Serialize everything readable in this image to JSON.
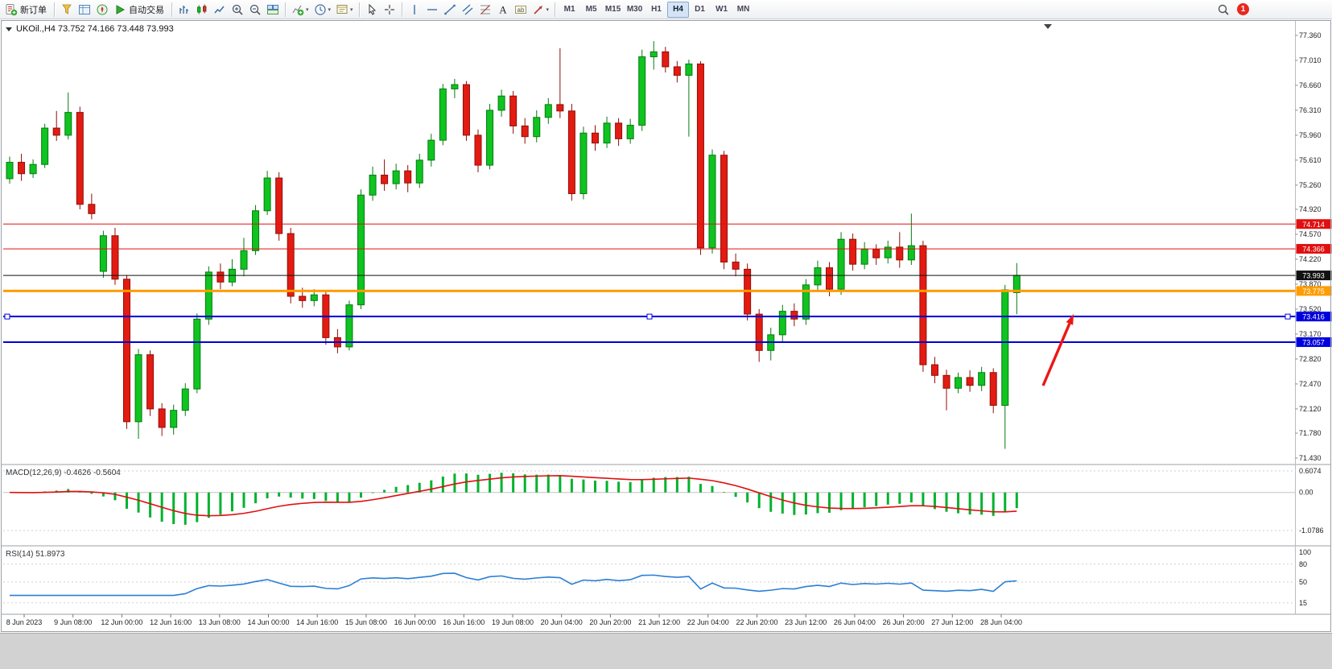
{
  "toolbar": {
    "items": [
      {
        "type": "button",
        "name": "new-order",
        "icon": "new-order",
        "label": "新订单"
      },
      {
        "type": "sep"
      },
      {
        "type": "button",
        "name": "market-watch",
        "icon": "market-watch"
      },
      {
        "type": "button",
        "name": "data-window",
        "icon": "data-window"
      },
      {
        "type": "button",
        "name": "navigator",
        "icon": "navigator"
      },
      {
        "type": "button",
        "name": "auto-trading",
        "icon": "auto-play",
        "label": "自动交易"
      },
      {
        "type": "sep"
      },
      {
        "type": "button",
        "name": "bar-chart-mode",
        "icon": "bar-chart"
      },
      {
        "type": "button",
        "name": "candlestick-mode",
        "icon": "candle-chart"
      },
      {
        "type": "button",
        "name": "line-chart-mode",
        "icon": "line-chart"
      },
      {
        "type": "button",
        "name": "zoom-in",
        "icon": "zoom-in"
      },
      {
        "type": "button",
        "name": "zoom-out",
        "icon": "zoom-out"
      },
      {
        "type": "button",
        "name": "tile-windows",
        "icon": "tile-windows"
      },
      {
        "type": "sep"
      },
      {
        "type": "button",
        "name": "indicators",
        "icon": "indicators",
        "caret": true
      },
      {
        "type": "button",
        "name": "periods",
        "icon": "clock",
        "caret": true
      },
      {
        "type": "button",
        "name": "templates",
        "icon": "templates",
        "caret": true
      },
      {
        "type": "sep"
      },
      {
        "type": "button",
        "name": "cursor",
        "icon": "cursor"
      },
      {
        "type": "button",
        "name": "crosshair",
        "icon": "crosshair"
      },
      {
        "type": "sep"
      },
      {
        "type": "button",
        "name": "vertical-line-tool",
        "icon": "vline"
      },
      {
        "type": "button",
        "name": "horizontal-line-tool",
        "icon": "hline"
      },
      {
        "type": "button",
        "name": "trendline-tool",
        "icon": "trendline"
      },
      {
        "type": "button",
        "name": "channel-tool",
        "icon": "channel"
      },
      {
        "type": "button",
        "name": "fibonacci-tool",
        "icon": "fibonacci"
      },
      {
        "type": "button",
        "name": "text-tool",
        "icon": "text"
      },
      {
        "type": "button",
        "name": "text-label-tool",
        "icon": "text-label"
      },
      {
        "type": "button",
        "name": "arrows-tool",
        "icon": "arrows",
        "caret": true
      },
      {
        "type": "sep"
      }
    ],
    "timeframes": [
      "M1",
      "M5",
      "M15",
      "M30",
      "H1",
      "H4",
      "D1",
      "W1",
      "MN"
    ],
    "active_timeframe": "H4",
    "notification_count": "1"
  },
  "chart_data": {
    "type": "candlestick",
    "symbol": "UKOil",
    "period": "H4",
    "title": "UKOil.,H4  73.752 74.166 73.448 73.993",
    "bull_color": "#0fc420",
    "bear_color": "#e31b12",
    "price_axis_labels": [
      "77.360",
      "77.010",
      "76.660",
      "76.310",
      "75.960",
      "75.610",
      "75.260",
      "74.920",
      "74.570",
      "74.220",
      "73.870",
      "73.520",
      "73.170",
      "72.820",
      "72.470",
      "72.120",
      "71.780",
      "71.430"
    ],
    "time_axis_labels": [
      "8 Jun 2023",
      "9 Jun 08:00",
      "12 Jun 00:00",
      "12 Jun 16:00",
      "13 Jun 08:00",
      "14 Jun 00:00",
      "14 Jun 16:00",
      "15 Jun 08:00",
      "16 Jun 00:00",
      "16 Jun 16:00",
      "19 Jun 08:00",
      "20 Jun 04:00",
      "20 Jun 20:00",
      "21 Jun 12:00",
      "22 Jun 04:00",
      "22 Jun 20:00",
      "23 Jun 12:00",
      "26 Jun 04:00",
      "26 Jun 20:00",
      "27 Jun 12:00",
      "28 Jun 04:00"
    ],
    "hlines": [
      {
        "name": "resistance-1",
        "price": 74.714,
        "label": "74.714",
        "color": "#e01010",
        "width": 1
      },
      {
        "name": "resistance-2",
        "price": 74.366,
        "label": "74.366",
        "color": "#e01010",
        "width": 1
      },
      {
        "name": "current-price",
        "price": 73.993,
        "label": "73.993",
        "color": "#111111",
        "width": 1
      },
      {
        "name": "pivot-orange",
        "price": 73.775,
        "label": "73.775",
        "color": "#ff9c00",
        "width": 3
      },
      {
        "name": "support-1",
        "price": 73.416,
        "label": "73.416",
        "color": "#0000dd",
        "width": 2,
        "selected": true
      },
      {
        "name": "support-2",
        "price": 73.057,
        "label": "73.057",
        "color": "#0000dd",
        "width": 2
      }
    ],
    "ohlc": [
      [
        75.35,
        75.66,
        75.28,
        75.58
      ],
      [
        75.58,
        75.7,
        75.32,
        75.42
      ],
      [
        75.42,
        75.62,
        75.36,
        75.55
      ],
      [
        75.55,
        76.12,
        75.5,
        76.06
      ],
      [
        76.06,
        76.3,
        75.88,
        75.96
      ],
      [
        75.96,
        76.56,
        75.9,
        76.28
      ],
      [
        76.28,
        76.36,
        74.92,
        74.99
      ],
      [
        74.99,
        75.14,
        74.78,
        74.86
      ],
      [
        74.05,
        74.62,
        73.96,
        74.55
      ],
      [
        74.55,
        74.66,
        73.86,
        73.94
      ],
      [
        73.94,
        74.0,
        71.84,
        71.94
      ],
      [
        71.94,
        72.96,
        71.7,
        72.88
      ],
      [
        72.88,
        72.94,
        72.02,
        72.12
      ],
      [
        72.12,
        72.2,
        71.74,
        71.86
      ],
      [
        71.86,
        72.18,
        71.76,
        72.1
      ],
      [
        72.1,
        72.48,
        72.02,
        72.4
      ],
      [
        72.4,
        73.46,
        72.34,
        73.38
      ],
      [
        73.38,
        74.12,
        73.3,
        74.04
      ],
      [
        74.04,
        74.16,
        73.8,
        73.9
      ],
      [
        73.9,
        74.22,
        73.84,
        74.08
      ],
      [
        74.08,
        74.52,
        73.98,
        74.34
      ],
      [
        74.34,
        74.98,
        74.28,
        74.9
      ],
      [
        74.9,
        75.46,
        74.84,
        75.36
      ],
      [
        75.36,
        75.44,
        74.48,
        74.58
      ],
      [
        74.58,
        74.66,
        73.6,
        73.7
      ],
      [
        73.7,
        73.82,
        73.54,
        73.64
      ],
      [
        73.64,
        73.8,
        73.56,
        73.72
      ],
      [
        73.72,
        73.78,
        73.02,
        73.12
      ],
      [
        73.12,
        73.24,
        72.9,
        72.99
      ],
      [
        72.99,
        73.64,
        72.94,
        73.58
      ],
      [
        73.58,
        75.2,
        73.52,
        75.12
      ],
      [
        75.12,
        75.52,
        75.04,
        75.4
      ],
      [
        75.4,
        75.62,
        75.18,
        75.28
      ],
      [
        75.28,
        75.56,
        75.2,
        75.46
      ],
      [
        75.46,
        75.54,
        75.16,
        75.29
      ],
      [
        75.29,
        75.7,
        75.22,
        75.61
      ],
      [
        75.61,
        75.98,
        75.52,
        75.89
      ],
      [
        75.89,
        76.68,
        75.82,
        76.61
      ],
      [
        76.61,
        76.75,
        76.48,
        76.67
      ],
      [
        76.67,
        76.72,
        75.88,
        75.96
      ],
      [
        75.96,
        76.04,
        75.44,
        75.54
      ],
      [
        75.54,
        76.4,
        75.48,
        76.31
      ],
      [
        76.31,
        76.6,
        76.22,
        76.51
      ],
      [
        76.51,
        76.58,
        75.98,
        76.09
      ],
      [
        76.09,
        76.2,
        75.84,
        75.94
      ],
      [
        75.94,
        76.31,
        75.86,
        76.21
      ],
      [
        76.21,
        76.48,
        76.12,
        76.39
      ],
      [
        76.39,
        77.18,
        76.2,
        76.3
      ],
      [
        76.3,
        76.4,
        75.04,
        75.14
      ],
      [
        75.14,
        76.08,
        75.06,
        75.99
      ],
      [
        75.99,
        76.1,
        75.74,
        75.85
      ],
      [
        75.85,
        76.22,
        75.78,
        76.13
      ],
      [
        76.13,
        76.2,
        75.81,
        75.91
      ],
      [
        75.91,
        76.19,
        75.84,
        76.1
      ],
      [
        76.1,
        77.16,
        76.02,
        77.06
      ],
      [
        77.06,
        77.28,
        76.88,
        77.13
      ],
      [
        77.13,
        77.2,
        76.84,
        76.92
      ],
      [
        76.92,
        77.0,
        76.7,
        76.8
      ],
      [
        76.8,
        77.02,
        75.94,
        76.96
      ],
      [
        76.96,
        77.0,
        74.28,
        74.38
      ],
      [
        74.38,
        75.76,
        74.3,
        75.68
      ],
      [
        75.68,
        75.74,
        74.08,
        74.18
      ],
      [
        74.18,
        74.3,
        73.98,
        74.08
      ],
      [
        74.08,
        74.16,
        73.36,
        73.45
      ],
      [
        73.45,
        73.52,
        72.78,
        72.94
      ],
      [
        72.94,
        73.26,
        72.8,
        73.16
      ],
      [
        73.16,
        73.58,
        73.06,
        73.49
      ],
      [
        73.49,
        73.6,
        73.28,
        73.38
      ],
      [
        73.38,
        73.94,
        73.3,
        73.86
      ],
      [
        73.86,
        74.2,
        73.76,
        74.1
      ],
      [
        74.1,
        74.18,
        73.7,
        73.8
      ],
      [
        73.8,
        74.6,
        73.72,
        74.5
      ],
      [
        74.5,
        74.58,
        74.06,
        74.15
      ],
      [
        74.15,
        74.46,
        74.08,
        74.36
      ],
      [
        74.36,
        74.43,
        74.14,
        74.24
      ],
      [
        74.24,
        74.48,
        74.16,
        74.39
      ],
      [
        74.39,
        74.6,
        74.1,
        74.21
      ],
      [
        74.21,
        74.86,
        74.14,
        74.41
      ],
      [
        74.41,
        74.48,
        72.64,
        72.74
      ],
      [
        72.74,
        72.85,
        72.48,
        72.59
      ],
      [
        72.59,
        72.67,
        72.1,
        72.41
      ],
      [
        72.41,
        72.63,
        72.34,
        72.56
      ],
      [
        72.56,
        72.66,
        72.36,
        72.45
      ],
      [
        72.45,
        72.71,
        72.37,
        72.63
      ],
      [
        72.63,
        72.69,
        72.06,
        72.17
      ],
      [
        72.17,
        73.86,
        71.56,
        73.79
      ],
      [
        73.752,
        74.166,
        73.448,
        73.993
      ]
    ],
    "macd": {
      "label": "MACD(12,26,9) -0.4626 -0.5604",
      "fast": 12,
      "slow": 26,
      "signal": 9,
      "axis_labels": [
        "0.6074",
        "0.00",
        "-1.0786"
      ],
      "histogram_color": "#00b22d",
      "signal_color": "#e01010"
    },
    "rsi": {
      "label": "RSI(14) 51.8973",
      "period": 14,
      "axis_labels": [
        "100",
        "80",
        "50",
        "15"
      ],
      "line_color": "#2a7fd4"
    },
    "annotation": {
      "name": "signal-arrow",
      "color": "#ee1515"
    }
  }
}
